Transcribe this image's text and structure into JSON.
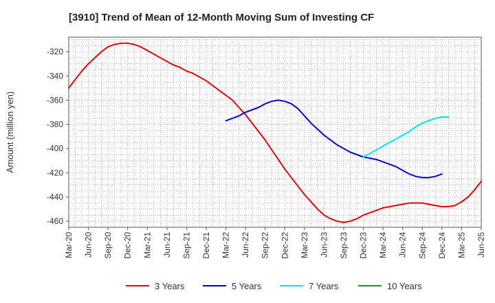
{
  "chart_data": {
    "type": "line",
    "title": "[3910]  Trend of Mean of 12-Month Moving Sum of Investing CF",
    "ylabel": "Amount (million yen)",
    "xlabel": "",
    "ylim": [
      -465,
      -308
    ],
    "yticks": [
      -320,
      -340,
      -360,
      -380,
      -400,
      -420,
      -440,
      -460
    ],
    "xticks": [
      "Mar-20",
      "Jun-20",
      "Sep-20",
      "Dec-20",
      "Mar-21",
      "Jun-21",
      "Sep-21",
      "Dec-21",
      "Mar-22",
      "Jun-22",
      "Sep-22",
      "Dec-22",
      "Mar-23",
      "Jun-23",
      "Sep-23",
      "Dec-23",
      "Mar-24",
      "Jun-24",
      "Sep-24",
      "Dec-24",
      "Mar-25",
      "Jun-25"
    ],
    "grid": true,
    "legend_position": "bottom",
    "series": [
      {
        "name": "3 Years",
        "color": "#e00000",
        "start": "Mar-20",
        "values": [
          -350,
          -343,
          -336,
          -330,
          -325,
          -320,
          -316,
          -314,
          -313,
          -313,
          -314,
          -316,
          -319,
          -322,
          -325,
          -328,
          -331,
          -333,
          -336,
          -338,
          -341,
          -344,
          -348,
          -352,
          -356,
          -360,
          -366,
          -372,
          -379,
          -386,
          -393,
          -401,
          -409,
          -417,
          -424,
          -431,
          -438,
          -444,
          -450,
          -455,
          -458,
          -460,
          -461,
          -460,
          -458,
          -455,
          -453,
          -451,
          -449,
          -448,
          -447,
          -446,
          -445,
          -445,
          -445,
          -446,
          -447,
          -448,
          -448,
          -447,
          -444,
          -440,
          -434,
          -427
        ]
      },
      {
        "name": "5 Years",
        "color": "#0000cc",
        "start": "Mar-22",
        "values": [
          -377,
          -375,
          -373,
          -370,
          -368,
          -366,
          -363,
          -361,
          -360,
          -361,
          -363,
          -367,
          -373,
          -379,
          -384,
          -389,
          -393,
          -397,
          -400,
          -403,
          -405,
          -407,
          -408,
          -409,
          -411,
          -413,
          -415,
          -418,
          -421,
          -423,
          -424,
          -424,
          -423,
          -421
        ]
      },
      {
        "name": "7 Years",
        "color": "#00e5ee",
        "start": "Dec-23",
        "values": [
          -407,
          -404,
          -401,
          -398,
          -395,
          -392,
          -389,
          -386,
          -382,
          -379,
          -377,
          -375,
          -374,
          -374
        ]
      },
      {
        "name": "10 Years",
        "color": "#228b22",
        "start": "Mar-20",
        "values": []
      }
    ]
  }
}
